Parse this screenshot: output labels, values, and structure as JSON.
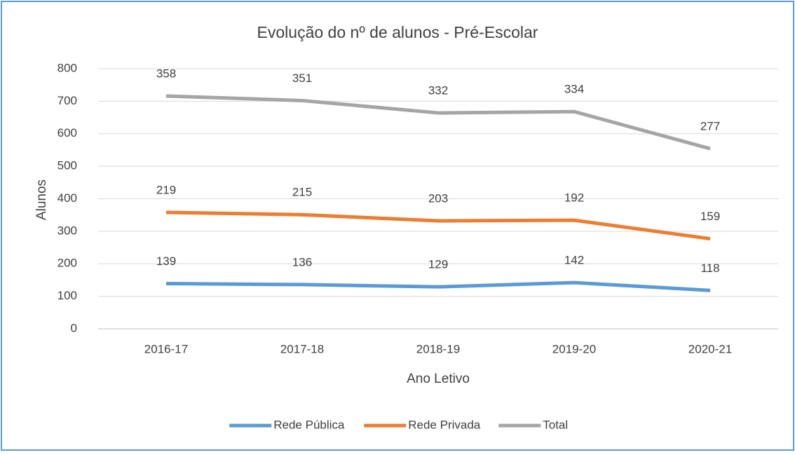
{
  "chart_data": {
    "type": "line",
    "stacked": true,
    "title": "Evolução do nº de alunos - Pré-Escolar",
    "x_label": "Ano Letivo",
    "y_label": "Alunos",
    "categories": [
      "2016-17",
      "2017-18",
      "2018-19",
      "2019-20",
      "2020-21"
    ],
    "series": [
      {
        "name": "Rede Pública",
        "color": "#5b9bd5",
        "values": [
          139,
          136,
          129,
          142,
          118
        ]
      },
      {
        "name": "Rede Privada",
        "color": "#ed7d31",
        "values": [
          219,
          215,
          203,
          192,
          159
        ]
      },
      {
        "name": "Total",
        "color": "#a5a5a5",
        "values": [
          358,
          351,
          332,
          334,
          277
        ]
      }
    ],
    "ylim": [
      0,
      800
    ],
    "yticks": [
      0,
      100,
      200,
      300,
      400,
      500,
      600,
      700,
      800
    ],
    "grid": true,
    "legend": "bottom"
  }
}
